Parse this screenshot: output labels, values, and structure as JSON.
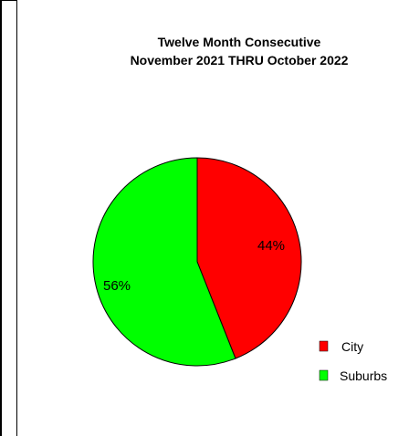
{
  "chart_data": {
    "type": "pie",
    "title": "Twelve Month Consecutive",
    "subtitle": "November 2021 THRU October 2022",
    "slices": [
      {
        "label": "City",
        "value": 44,
        "display": "44%",
        "color": "#ff0000"
      },
      {
        "label": "Suburbs",
        "value": 56,
        "display": "56%",
        "color": "#00ff00"
      }
    ],
    "legend_placement": "bottom-right"
  }
}
